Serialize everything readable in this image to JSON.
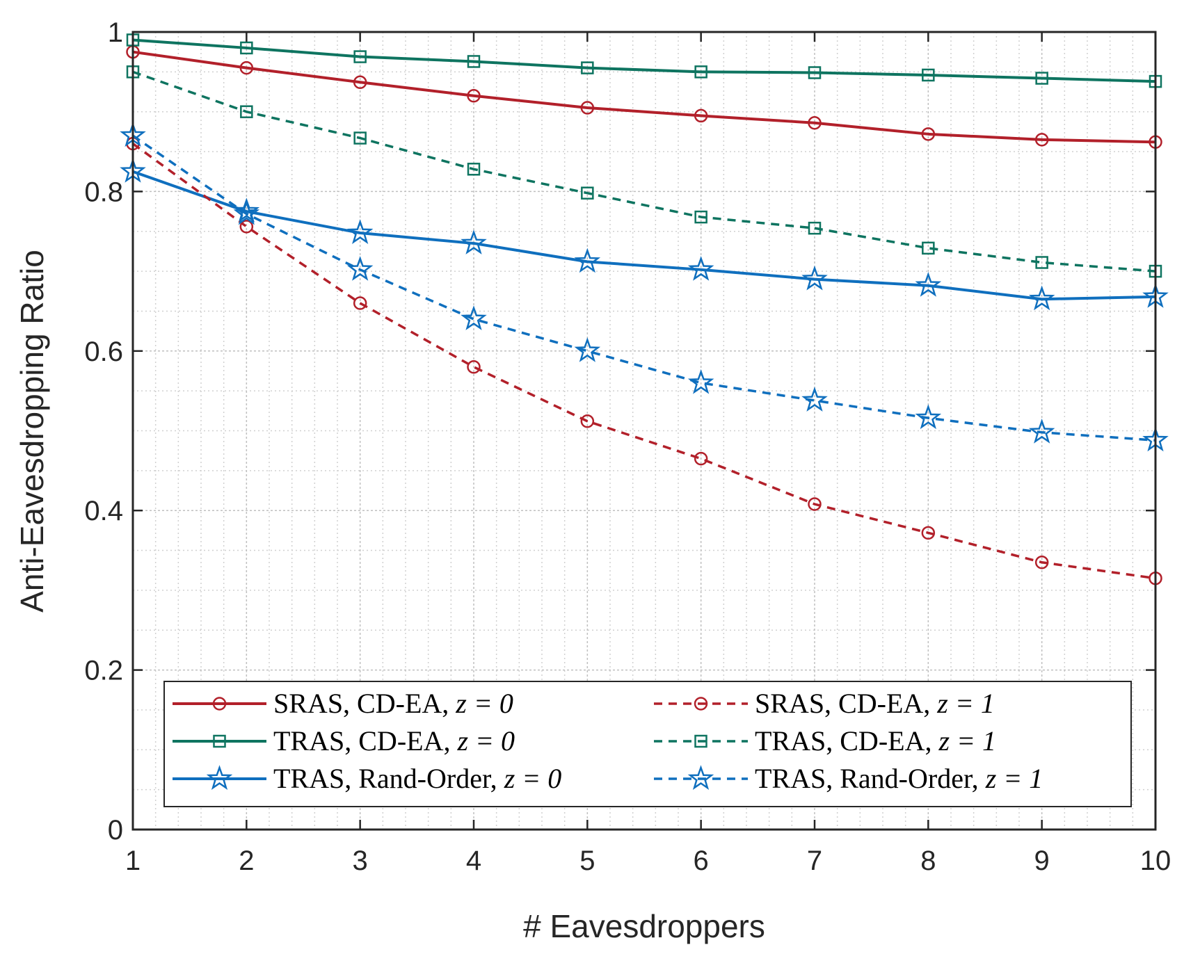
{
  "chart_data": {
    "type": "line",
    "xlabel": "# Eavesdroppers",
    "ylabel": "Anti-Eavesdropping Ratio",
    "xlim": [
      1,
      10
    ],
    "ylim": [
      0,
      1
    ],
    "xticks": [
      1,
      2,
      3,
      4,
      5,
      6,
      7,
      8,
      9,
      10
    ],
    "yticks": [
      0,
      0.2,
      0.4,
      0.6,
      0.8,
      1
    ],
    "ytick_labels": [
      "0",
      "0.2",
      "0.4",
      "0.6",
      "0.8",
      "1"
    ],
    "grid": true,
    "minor_grid": true,
    "legend_position": "bottom",
    "x": [
      1,
      2,
      3,
      4,
      5,
      6,
      7,
      8,
      9,
      10
    ],
    "series": [
      {
        "name": "SRAS, CD-EA, z = 0",
        "label_prefix": "SRAS, CD-EA, ",
        "label_math": "z = 0",
        "color": "#B2202A",
        "dash": "solid",
        "marker": "circle",
        "values": [
          0.975,
          0.955,
          0.937,
          0.92,
          0.905,
          0.895,
          0.886,
          0.872,
          0.865,
          0.862
        ]
      },
      {
        "name": "TRAS, CD-EA, z = 0",
        "label_prefix": "TRAS, CD-EA, ",
        "label_math": "z = 0",
        "color": "#0E7460",
        "dash": "solid",
        "marker": "square",
        "values": [
          0.99,
          0.98,
          0.969,
          0.963,
          0.955,
          0.95,
          0.949,
          0.946,
          0.942,
          0.938
        ]
      },
      {
        "name": "TRAS, Rand-Order, z = 0",
        "label_prefix": "TRAS, Rand-Order, ",
        "label_math": "z = 0",
        "color": "#0F6FBE",
        "dash": "solid",
        "marker": "star",
        "values": [
          0.825,
          0.775,
          0.748,
          0.735,
          0.712,
          0.702,
          0.69,
          0.682,
          0.665,
          0.668
        ]
      },
      {
        "name": "SRAS, CD-EA, z = 1",
        "label_prefix": "SRAS, CD-EA, ",
        "label_math": "z = 1",
        "color": "#B2202A",
        "dash": "dashed",
        "marker": "circle",
        "values": [
          0.86,
          0.756,
          0.66,
          0.58,
          0.512,
          0.465,
          0.408,
          0.372,
          0.335,
          0.315
        ]
      },
      {
        "name": "TRAS, CD-EA, z = 1",
        "label_prefix": "TRAS, CD-EA, ",
        "label_math": "z = 1",
        "color": "#0E7460",
        "dash": "dashed",
        "marker": "square",
        "values": [
          0.95,
          0.9,
          0.867,
          0.828,
          0.798,
          0.768,
          0.754,
          0.729,
          0.711,
          0.7
        ]
      },
      {
        "name": "TRAS, Rand-Order, z = 1",
        "label_prefix": "TRAS, Rand-Order, ",
        "label_math": "z = 1",
        "color": "#0F6FBE",
        "dash": "dashed",
        "marker": "star",
        "values": [
          0.87,
          0.772,
          0.702,
          0.64,
          0.6,
          0.56,
          0.538,
          0.516,
          0.498,
          0.488
        ]
      }
    ]
  }
}
